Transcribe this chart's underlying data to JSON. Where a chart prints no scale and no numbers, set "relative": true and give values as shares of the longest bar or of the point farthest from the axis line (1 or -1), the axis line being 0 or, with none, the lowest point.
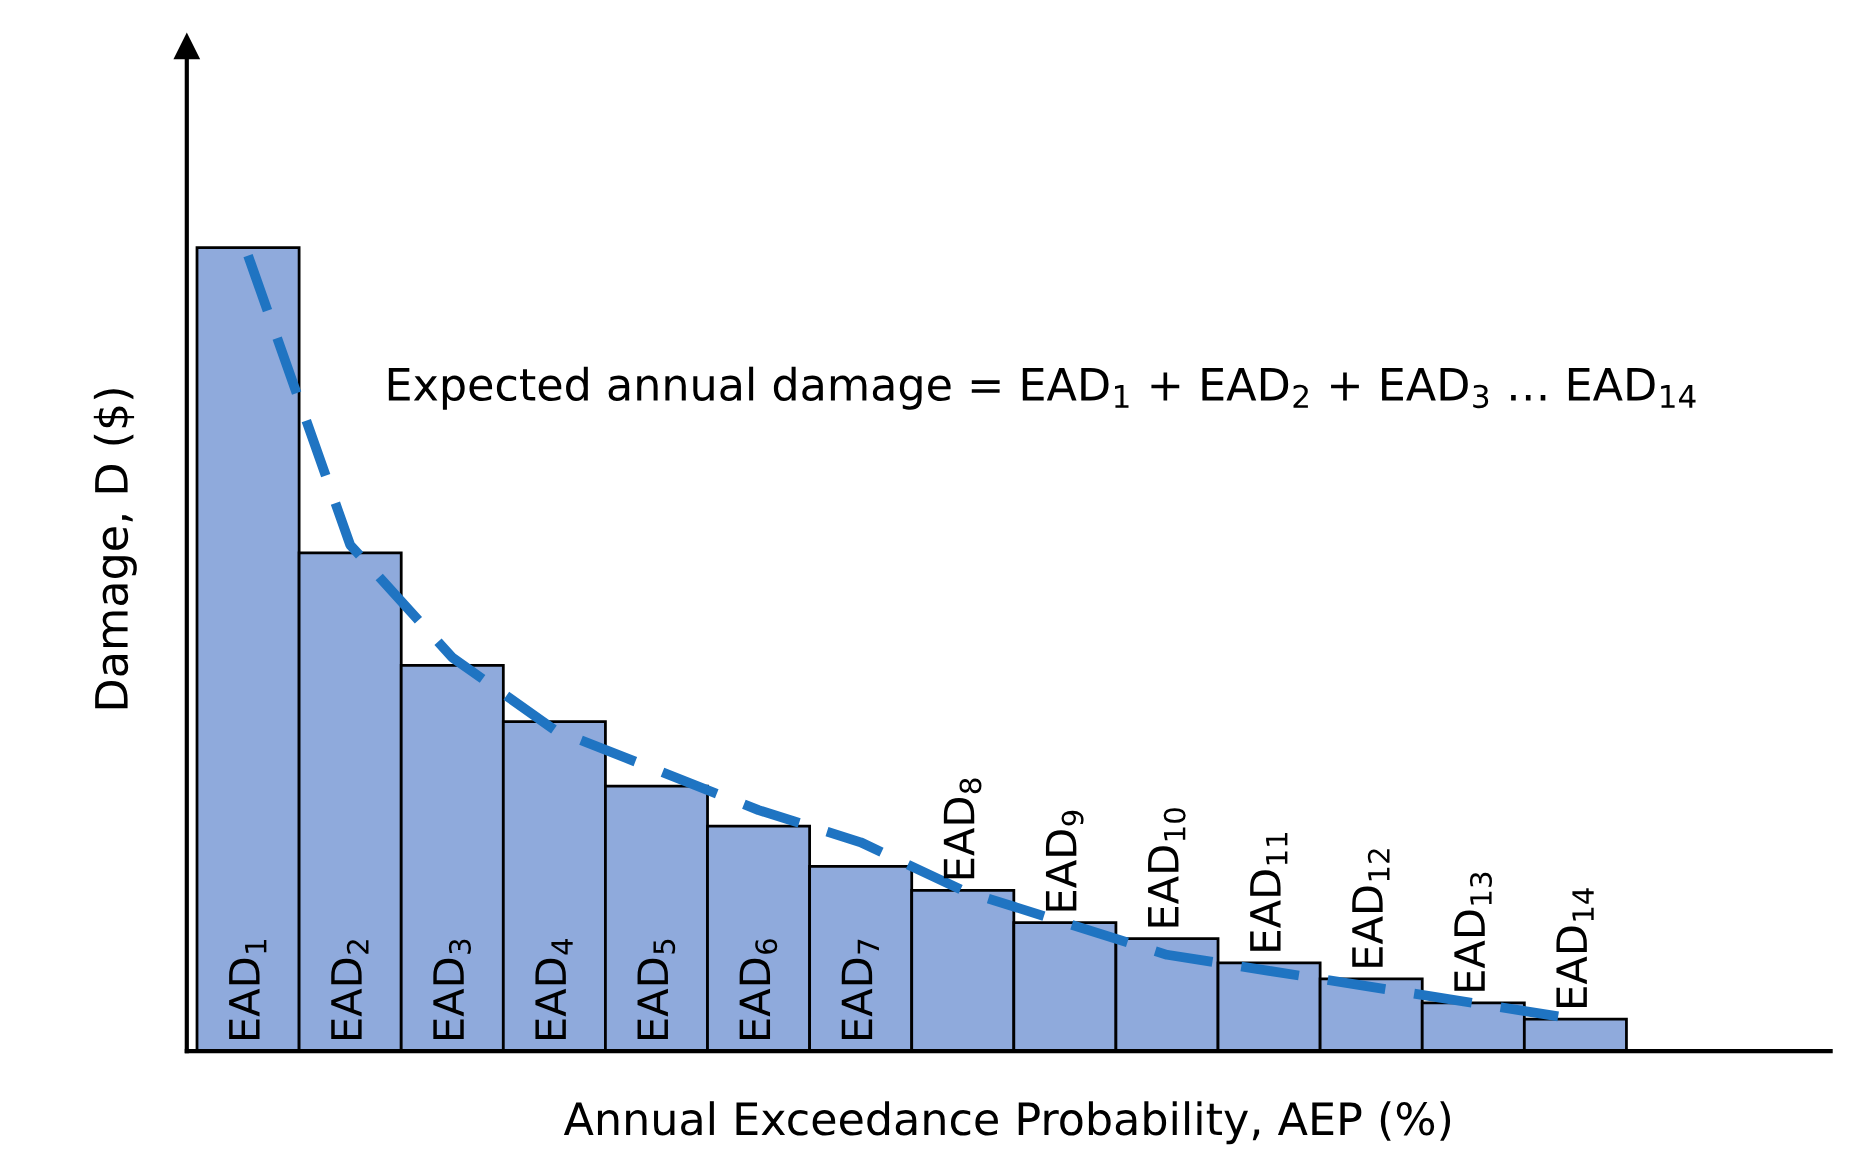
{
  "chart_data": {
    "type": "bar",
    "relative": true,
    "xlabel": "Annual Exceedance Probability, AEP (%)",
    "ylabel": "Damage, D ($)",
    "annotations": [
      "Expected annual damage = EAD$_{1}$ + EAD$_{2}$ + EAD$_{3}$ … EAD$_{14}$"
    ],
    "categories": [
      "EAD$_{1}$",
      "EAD$_{2}$",
      "EAD$_{3}$",
      "EAD$_{4}$",
      "EAD$_{5}$",
      "EAD$_{6}$",
      "EAD$_{7}$",
      "EAD$_{8}$",
      "EAD$_{9}$",
      "EAD$_{10}$",
      "EAD$_{11}$",
      "EAD$_{12}$",
      "EAD$_{13}$",
      "EAD$_{14}$"
    ],
    "series": [
      {
        "color": "#8faadc",
        "values": [
          1,
          0.62,
          0.48,
          0.41,
          0.33,
          0.28,
          0.23,
          0.2,
          0.16,
          0.14,
          0.11,
          0.09,
          0.06,
          0.04
        ]
      },
      {
        "type": "line",
        "color": "#1f74c2",
        "line_style": "dashed",
        "values": [
          0.99,
          0.63,
          0.49,
          0.4,
          0.35,
          0.3,
          0.26,
          0.2,
          0.16,
          0.12,
          0.1,
          0.08,
          0.06,
          0.04
        ]
      }
    ]
  }
}
